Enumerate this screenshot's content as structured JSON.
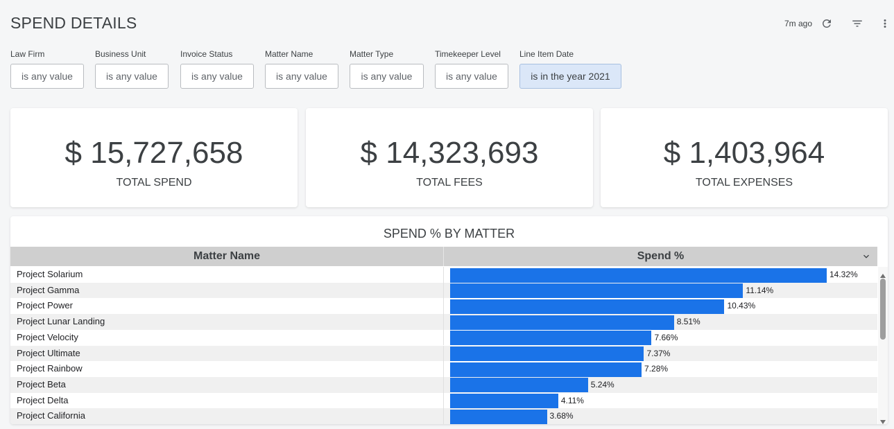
{
  "header": {
    "title": "SPEND DETAILS",
    "updated": "7m ago",
    "icons": [
      "refresh-icon",
      "filter-icon",
      "more-vert-icon"
    ]
  },
  "filters": [
    {
      "label": "Law Firm",
      "value": "is any value",
      "active": false
    },
    {
      "label": "Business Unit",
      "value": "is any value",
      "active": false
    },
    {
      "label": "Invoice Status",
      "value": "is any value",
      "active": false
    },
    {
      "label": "Matter Name",
      "value": "is any value",
      "active": false
    },
    {
      "label": "Matter Type",
      "value": "is any value",
      "active": false
    },
    {
      "label": "Timekeeper Level",
      "value": "is any value",
      "active": false
    },
    {
      "label": "Line Item Date",
      "value": "is in the year 2021",
      "active": true
    }
  ],
  "kpis": [
    {
      "value": "$ 15,727,658",
      "label": "TOTAL SPEND"
    },
    {
      "value": "$ 14,323,693",
      "label": "TOTAL FEES"
    },
    {
      "value": "$ 1,403,964",
      "label": "TOTAL EXPENSES"
    }
  ],
  "table": {
    "title": "SPEND % BY MATTER",
    "columns": [
      "Matter Name",
      "Spend %"
    ],
    "bar_color": "#1a73e8",
    "max_percent": 14.32,
    "rows": [
      {
        "name": "Project Solarium",
        "percent": 14.32,
        "label": "14.32%"
      },
      {
        "name": "Project Gamma",
        "percent": 11.14,
        "label": "11.14%"
      },
      {
        "name": "Project Power",
        "percent": 10.43,
        "label": "10.43%"
      },
      {
        "name": "Project Lunar Landing",
        "percent": 8.51,
        "label": "8.51%"
      },
      {
        "name": "Project Velocity",
        "percent": 7.66,
        "label": "7.66%"
      },
      {
        "name": "Project Ultimate",
        "percent": 7.37,
        "label": "7.37%"
      },
      {
        "name": "Project Rainbow",
        "percent": 7.28,
        "label": "7.28%"
      },
      {
        "name": "Project Beta",
        "percent": 5.24,
        "label": "5.24%"
      },
      {
        "name": "Project Delta",
        "percent": 4.11,
        "label": "4.11%"
      },
      {
        "name": "Project California",
        "percent": 3.68,
        "label": "3.68%"
      }
    ]
  }
}
